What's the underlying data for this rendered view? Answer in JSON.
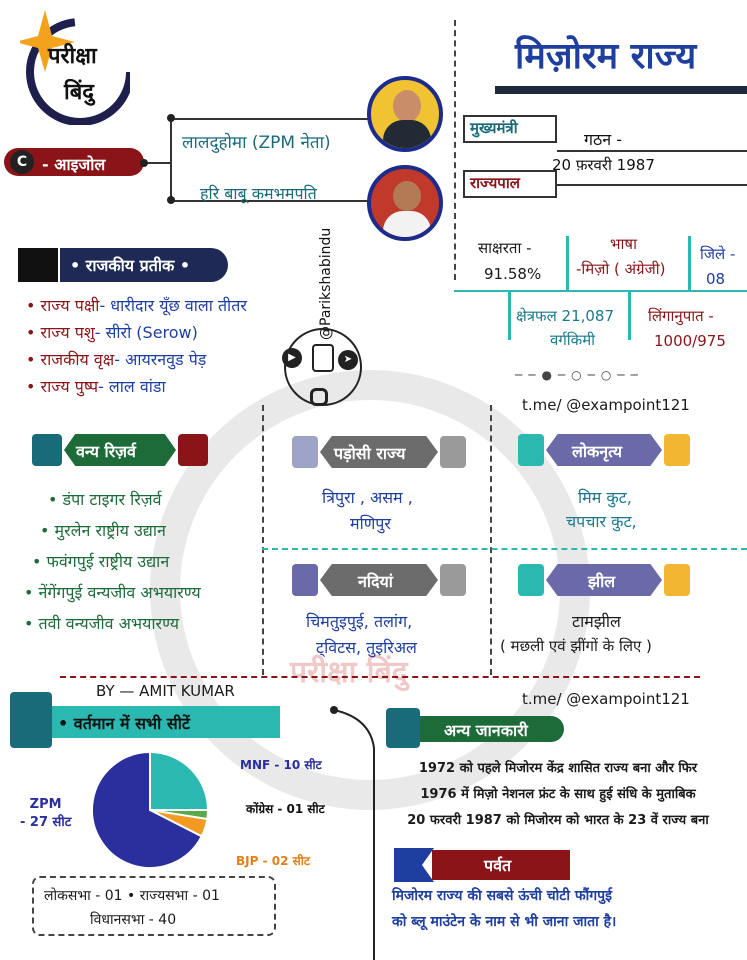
{
  "brand": {
    "line1": "परीक्षा",
    "line2": "बिंदु",
    "watermark": "परीक्षा बिंदु",
    "handle": "@Parikshabindu"
  },
  "title": "मिज़ोरम राज्य",
  "capital": {
    "icon": "C",
    "text": "- आइजोल"
  },
  "cm": {
    "label": "मुख्यमंत्री",
    "name": "लालदुहोमा (ZPM नेता)"
  },
  "governor": {
    "label": "राज्यपाल",
    "name": "हरि बाबू कमभमपति"
  },
  "formation": {
    "label": "गठन -",
    "date": "20 फ़रवरी 1987"
  },
  "literacy": {
    "label": "साक्षरता -",
    "value": "91.58%"
  },
  "language": {
    "label": "भाषा",
    "value": "-मिज़ो ( अंग्रेजी)"
  },
  "districts": {
    "label": "जिले -",
    "value": "08"
  },
  "area": {
    "label": "क्षेत्रफल 21,087",
    "unit": "वर्गकिमी"
  },
  "sex_ratio": {
    "label": "लिंगानुपात -",
    "value": "1000/975"
  },
  "symbols": {
    "title": "• राजकीय प्रतीक •",
    "items": [
      {
        "key": "• राज्य पक्षी",
        "value": "- धारीदार यूँछ वाला तीतर"
      },
      {
        "key": "• राज्य पशु",
        "value": "-  सीरो (Serow)"
      },
      {
        "key": "• राजकीय वृक्ष",
        "value": "- आयरनवुड पेड़"
      },
      {
        "key": "• राज्य पुष्प",
        "value": "-  लाल वांडा"
      }
    ]
  },
  "telegram": "t.me/ @exampoint121",
  "wildlife": {
    "title": "वन्य रिज़र्व",
    "items": [
      "• डंपा टाइगर रिज़र्व",
      "• मुरलेन राष्ट्रीय उद्यान",
      "• फवंगपुई राष्ट्रीय उद्यान",
      "• नेंगेंगपुई वन्यजीव अभयारण्य",
      "• तवी वन्यजीव अभयारण्य"
    ]
  },
  "neighbours": {
    "title": "पड़ोसी राज्य",
    "line1": "त्रिपुरा , असम ,",
    "line2": "मणिपुर"
  },
  "folk_dance": {
    "title": "लोकनृत्य",
    "line1": "मिम कुट,",
    "line2": "चपचार कुट,"
  },
  "rivers": {
    "title": "नदियां",
    "line1": "चिमतुइपुई, तलांग,",
    "line2": "ट्विटस, तुइरिअल"
  },
  "lake": {
    "title": "झील",
    "line1": "टामझील",
    "line2": "( मछली एवं झींगों के लिए )"
  },
  "author": "BY — AMIT KUMAR",
  "seats": {
    "title": "• वर्तमान में सभी सीटें",
    "zpm": "ZPM\n- 27 सीट",
    "mnf": "MNF - 10 सीट",
    "congress": "कोंग्रेस - 01 सीट",
    "bjp": "BJP - 02 सीट",
    "box_line1": "लोकसभा - 01 • राज्यसभा - 01",
    "box_line2": "विधानसभा - 40"
  },
  "chart_data": {
    "type": "pie",
    "categories": [
      "ZPM",
      "MNF",
      "कोंग्रेस",
      "BJP"
    ],
    "values": [
      27,
      10,
      1,
      2
    ],
    "colors": [
      "#2b2f9e",
      "#2bb8b0",
      "#5aa84c",
      "#f29a22"
    ]
  },
  "other_info": {
    "title": "अन्य जानकारी",
    "line1": "1972 को पहले मिजोरम केंद्र शासित राज्य बना और फिर",
    "line2": "1976 में मिज़ो नेशनल फ्रंट के साथ हुई संधि के मुताबिक",
    "line3": "20 फरवरी 1987 को मिजोरम को भारत के 23 वें राज्य बना"
  },
  "mountain": {
    "title": "पर्वत",
    "line1": "मिजोरम राज्य की सबसे ऊंची चोटी फौंगपुई",
    "line2": "को ब्लू माउंटेन के नाम से भी जाना जाता है।"
  }
}
